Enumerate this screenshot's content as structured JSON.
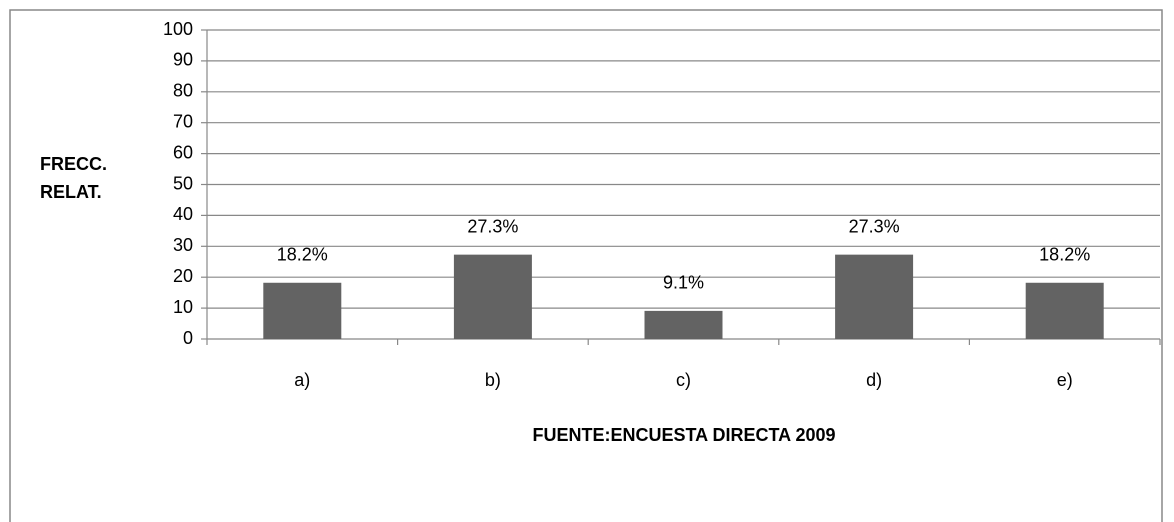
{
  "chart_data": {
    "type": "bar",
    "y_label": "FRECC. RELAT.",
    "x_label": "FUENTE:ENCUESTA DIRECTA 2009",
    "categories": [
      "a)",
      "b)",
      "c)",
      "d)",
      "e)"
    ],
    "values": [
      18.2,
      27.3,
      9.1,
      27.3,
      18.2
    ],
    "value_labels": [
      "18.2%",
      "27.3%",
      "9.1%",
      "27.3%",
      "18.2%"
    ],
    "color": "#636363",
    "ylim": [
      0,
      100
    ],
    "yticks": [
      0,
      10,
      20,
      30,
      40,
      50,
      60,
      70,
      80,
      90,
      100
    ],
    "grid": true
  }
}
